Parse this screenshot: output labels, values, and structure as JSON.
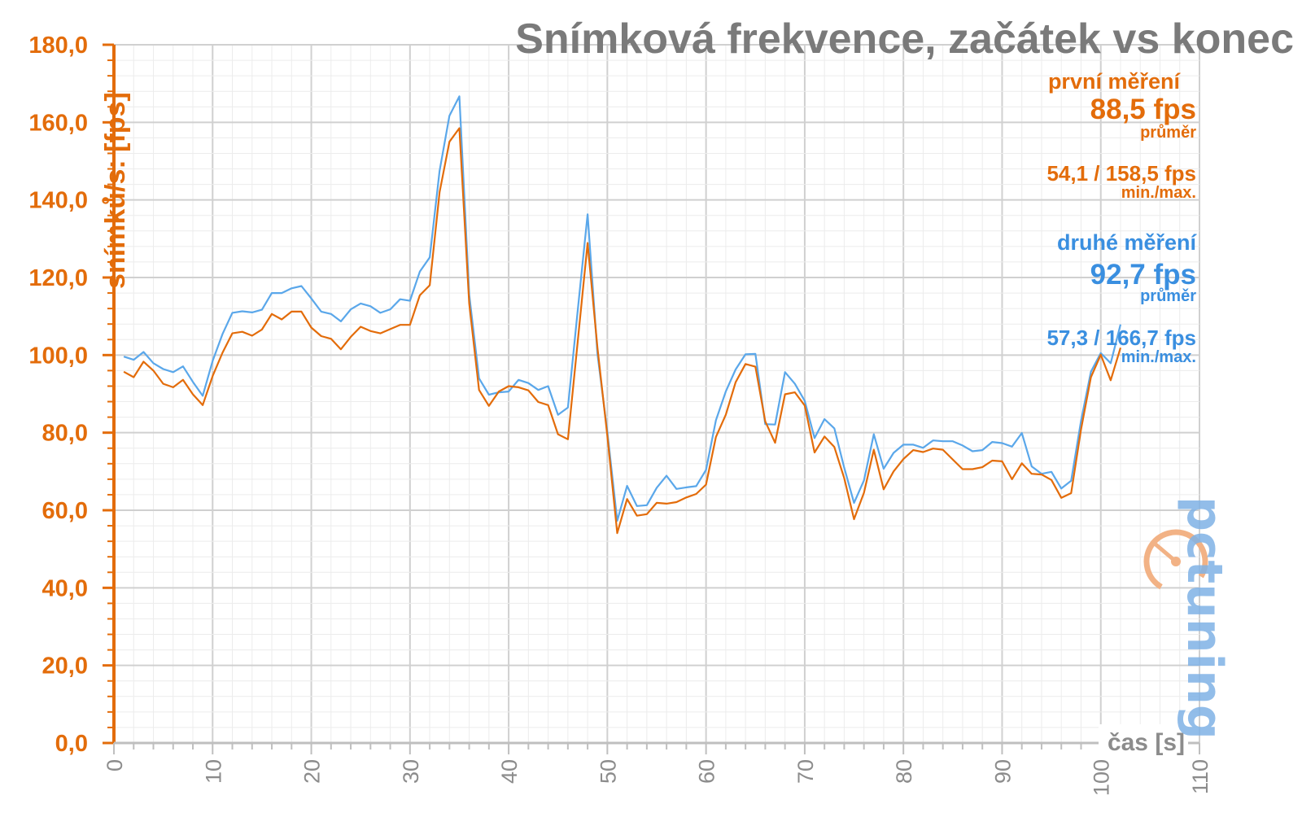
{
  "title": "Snímková frekvence, začátek vs konec",
  "legend": {
    "first": {
      "label": "první měření",
      "avg": "88,5 fps",
      "avg_label": "průměr",
      "minmax": "54,1 / 158,5 fps",
      "minmax_label": "min./max."
    },
    "second": {
      "label": "druhé měření",
      "avg": "92,7 fps",
      "avg_label": "průměr",
      "minmax": "57,3 / 166,7 fps",
      "minmax_label": "min./max."
    }
  },
  "logo_text": "pctuning",
  "colors": {
    "first": "#e36c0a",
    "second": "#5aa7ea",
    "axis": "#e36c0a",
    "grid": "#d9d9d9",
    "title": "#7a7a7a"
  },
  "chart_data": {
    "type": "line",
    "xlabel": "čas [s]",
    "ylabel": "snímků/s: [fps]",
    "xlim": [
      0,
      110
    ],
    "ylim": [
      0,
      180
    ],
    "xticks": [
      "0",
      "10",
      "20",
      "30",
      "40",
      "50",
      "60",
      "70",
      "80",
      "90",
      "100",
      "110"
    ],
    "yticks": [
      "0,0",
      "20,0",
      "40,0",
      "60,0",
      "80,0",
      "100,0",
      "120,0",
      "140,0",
      "160,0",
      "180,0"
    ],
    "grid": true,
    "x": [
      1,
      2,
      3,
      4,
      5,
      6,
      7,
      8,
      9,
      10,
      11,
      12,
      13,
      14,
      15,
      16,
      17,
      18,
      19,
      20,
      21,
      22,
      23,
      24,
      25,
      26,
      27,
      28,
      29,
      30,
      31,
      32,
      33,
      34,
      35,
      36,
      37,
      38,
      39,
      40,
      41,
      42,
      43,
      44,
      45,
      46,
      47,
      48,
      49,
      50,
      51,
      52,
      53,
      54,
      55,
      56,
      57,
      58,
      59,
      60,
      61,
      62,
      63,
      64,
      65,
      66,
      67,
      68,
      69,
      70,
      71,
      72,
      73,
      74,
      75,
      76,
      77,
      78,
      79,
      80,
      81,
      82,
      83,
      84,
      85,
      86,
      87,
      88,
      89,
      90,
      91,
      92,
      93,
      94,
      95,
      96,
      97,
      98,
      99,
      100,
      101,
      102
    ],
    "series": [
      {
        "name": "první měření",
        "values": [
          95.7,
          94.3,
          98.3,
          96.0,
          92.6,
          91.7,
          93.6,
          89.9,
          87.1,
          94.6,
          100.6,
          105.6,
          106.0,
          105.0,
          106.6,
          110.6,
          109.2,
          111.2,
          111.2,
          107.1,
          104.9,
          104.2,
          101.5,
          104.7,
          107.3,
          106.2,
          105.6,
          106.7,
          107.8,
          107.8,
          115.4,
          118.0,
          142.0,
          155.0,
          158.5,
          113.3,
          91.0,
          86.9,
          90.6,
          92.0,
          91.7,
          90.9,
          87.9,
          87.1,
          79.6,
          78.3,
          103.6,
          128.9,
          101.9,
          79.1,
          54.1,
          62.9,
          58.6,
          59.0,
          61.9,
          61.7,
          62.1,
          63.3,
          64.2,
          66.6,
          78.9,
          84.6,
          93.0,
          97.7,
          97.0,
          82.9,
          77.4,
          89.9,
          90.4,
          87.0,
          74.9,
          79.0,
          76.3,
          68.3,
          57.7,
          64.5,
          75.6,
          65.4,
          70.0,
          73.2,
          75.5,
          75.0,
          75.9,
          75.6,
          73.1,
          70.6,
          70.6,
          71.1,
          72.8,
          72.6,
          68.0,
          72.1,
          69.4,
          69.2,
          67.8,
          63.2,
          64.4,
          80.9,
          94.3,
          100.1,
          93.5,
          101.9
        ]
      },
      {
        "name": "druhé měření",
        "values": [
          99.6,
          98.8,
          100.8,
          97.9,
          96.4,
          95.6,
          97.1,
          93.1,
          89.5,
          98.5,
          105.4,
          110.9,
          111.3,
          111.0,
          111.7,
          116.0,
          116.0,
          117.2,
          117.8,
          114.6,
          111.2,
          110.6,
          108.7,
          111.8,
          113.3,
          112.6,
          110.9,
          111.8,
          114.4,
          114.0,
          121.5,
          125.2,
          147.5,
          161.7,
          166.7,
          115.6,
          94.0,
          89.8,
          90.4,
          90.6,
          93.6,
          92.8,
          91.0,
          92.0,
          84.6,
          86.5,
          111.6,
          136.3,
          100.3,
          80.1,
          57.3,
          66.3,
          61.1,
          61.3,
          65.8,
          68.9,
          65.5,
          65.9,
          66.2,
          70.4,
          83.2,
          90.6,
          96.3,
          100.2,
          100.3,
          82.2,
          82.1,
          95.6,
          92.6,
          88.2,
          78.6,
          83.5,
          81.1,
          71.0,
          61.9,
          67.7,
          79.6,
          70.7,
          74.8,
          76.9,
          76.9,
          76.1,
          78.0,
          77.8,
          77.8,
          76.7,
          75.2,
          75.5,
          77.6,
          77.3,
          76.4,
          79.9,
          71.3,
          69.4,
          69.9,
          65.6,
          67.6,
          83.1,
          95.7,
          100.5,
          97.9,
          107.9
        ]
      }
    ]
  }
}
